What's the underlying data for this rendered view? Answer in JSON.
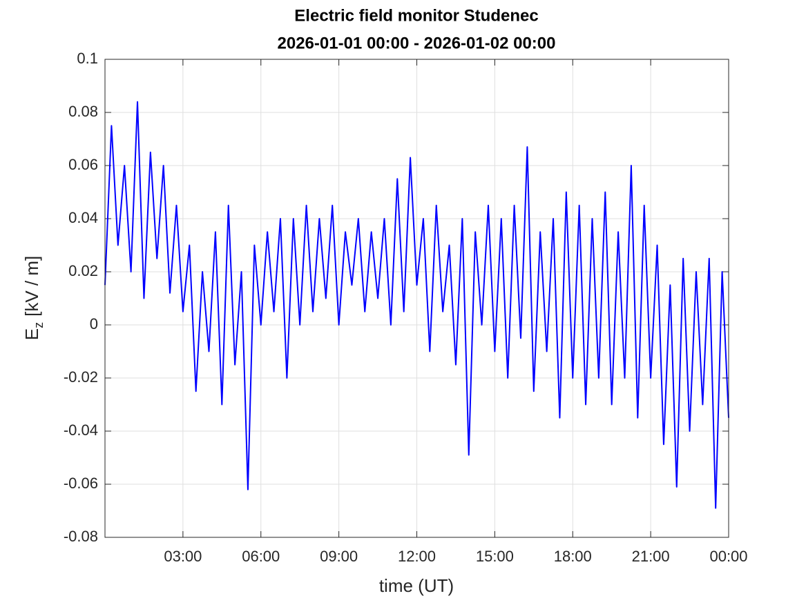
{
  "chart_data": {
    "type": "line",
    "title": "Electric field monitor Studenec",
    "subtitle": "2026-01-01 00:00 - 2026-01-02 00:00",
    "x_label": "time (UT)",
    "y_label": "E",
    "y_label_sub": "z",
    "y_label_unit": "[kV / m]",
    "color": "#0000ff",
    "grid": true,
    "xlim": [
      "2026-01-01 00:00",
      "2026-01-02 00:00"
    ],
    "xticks": [
      {
        "value": "2026-01-01 03:00",
        "label": "03:00"
      },
      {
        "value": "2026-01-01 06:00",
        "label": "06:00"
      },
      {
        "value": "2026-01-01 09:00",
        "label": "09:00"
      },
      {
        "value": "2026-01-01 12:00",
        "label": "12:00"
      },
      {
        "value": "2026-01-01 15:00",
        "label": "15:00"
      },
      {
        "value": "2026-01-01 18:00",
        "label": "18:00"
      },
      {
        "value": "2026-01-01 21:00",
        "label": "21:00"
      },
      {
        "value": "2026-01-02 00:00",
        "label": "00:00"
      }
    ],
    "ylim": [
      -0.08,
      0.1
    ],
    "yticks": [
      -0.08,
      -0.06,
      -0.04,
      -0.02,
      0,
      0.02,
      0.04,
      0.06,
      0.08,
      0.1
    ],
    "x": [
      "2026-01-01 00:00",
      "2026-01-01 00:15",
      "2026-01-01 00:30",
      "2026-01-01 00:45",
      "2026-01-01 01:00",
      "2026-01-01 01:15",
      "2026-01-01 01:30",
      "2026-01-01 01:45",
      "2026-01-01 02:00",
      "2026-01-01 02:15",
      "2026-01-01 02:30",
      "2026-01-01 02:45",
      "2026-01-01 03:00",
      "2026-01-01 03:15",
      "2026-01-01 03:30",
      "2026-01-01 03:45",
      "2026-01-01 04:00",
      "2026-01-01 04:15",
      "2026-01-01 04:30",
      "2026-01-01 04:45",
      "2026-01-01 05:00",
      "2026-01-01 05:15",
      "2026-01-01 05:30",
      "2026-01-01 05:45",
      "2026-01-01 06:00",
      "2026-01-01 06:15",
      "2026-01-01 06:30",
      "2026-01-01 06:45",
      "2026-01-01 07:00",
      "2026-01-01 07:15",
      "2026-01-01 07:30",
      "2026-01-01 07:45",
      "2026-01-01 08:00",
      "2026-01-01 08:15",
      "2026-01-01 08:30",
      "2026-01-01 08:45",
      "2026-01-01 09:00",
      "2026-01-01 09:15",
      "2026-01-01 09:30",
      "2026-01-01 09:45",
      "2026-01-01 10:00",
      "2026-01-01 10:15",
      "2026-01-01 10:30",
      "2026-01-01 10:45",
      "2026-01-01 11:00",
      "2026-01-01 11:15",
      "2026-01-01 11:30",
      "2026-01-01 11:45",
      "2026-01-01 12:00",
      "2026-01-01 12:15",
      "2026-01-01 12:30",
      "2026-01-01 12:45",
      "2026-01-01 13:00",
      "2026-01-01 13:15",
      "2026-01-01 13:30",
      "2026-01-01 13:45",
      "2026-01-01 14:00",
      "2026-01-01 14:15",
      "2026-01-01 14:30",
      "2026-01-01 14:45",
      "2026-01-01 15:00",
      "2026-01-01 15:15",
      "2026-01-01 15:30",
      "2026-01-01 15:45",
      "2026-01-01 16:00",
      "2026-01-01 16:15",
      "2026-01-01 16:30",
      "2026-01-01 16:45",
      "2026-01-01 17:00",
      "2026-01-01 17:15",
      "2026-01-01 17:30",
      "2026-01-01 17:45",
      "2026-01-01 18:00",
      "2026-01-01 18:15",
      "2026-01-01 18:30",
      "2026-01-01 18:45",
      "2026-01-01 19:00",
      "2026-01-01 19:15",
      "2026-01-01 19:30",
      "2026-01-01 19:45",
      "2026-01-01 20:00",
      "2026-01-01 20:15",
      "2026-01-01 20:30",
      "2026-01-01 20:45",
      "2026-01-01 21:00",
      "2026-01-01 21:15",
      "2026-01-01 21:30",
      "2026-01-01 21:45",
      "2026-01-01 22:00",
      "2026-01-01 22:15",
      "2026-01-01 22:30",
      "2026-01-01 22:45",
      "2026-01-01 23:00",
      "2026-01-01 23:15",
      "2026-01-01 23:30",
      "2026-01-01 23:45",
      "2026-01-02 00:00"
    ],
    "values": [
      0.015,
      0.075,
      0.03,
      0.06,
      0.02,
      0.084,
      0.01,
      0.065,
      0.025,
      0.06,
      0.012,
      0.045,
      0.005,
      0.03,
      -0.025,
      0.02,
      -0.01,
      0.035,
      -0.03,
      0.045,
      -0.015,
      0.02,
      -0.062,
      0.03,
      0,
      0.035,
      0.005,
      0.04,
      -0.02,
      0.04,
      0,
      0.045,
      0.005,
      0.04,
      0.01,
      0.045,
      0,
      0.035,
      0.015,
      0.04,
      0.005,
      0.035,
      0.01,
      0.04,
      0,
      0.055,
      0.005,
      0.063,
      0.015,
      0.04,
      -0.01,
      0.045,
      0.005,
      0.03,
      -0.015,
      0.04,
      -0.049,
      0.035,
      0,
      0.045,
      -0.01,
      0.04,
      -0.02,
      0.045,
      -0.005,
      0.067,
      -0.025,
      0.035,
      -0.01,
      0.04,
      -0.035,
      0.05,
      -0.02,
      0.045,
      -0.03,
      0.04,
      -0.02,
      0.05,
      -0.03,
      0.035,
      -0.02,
      0.06,
      -0.035,
      0.045,
      -0.02,
      0.03,
      -0.045,
      0.015,
      -0.061,
      0.025,
      -0.04,
      0.02,
      -0.03,
      0.025,
      -0.069,
      0.02,
      -0.035
    ]
  }
}
